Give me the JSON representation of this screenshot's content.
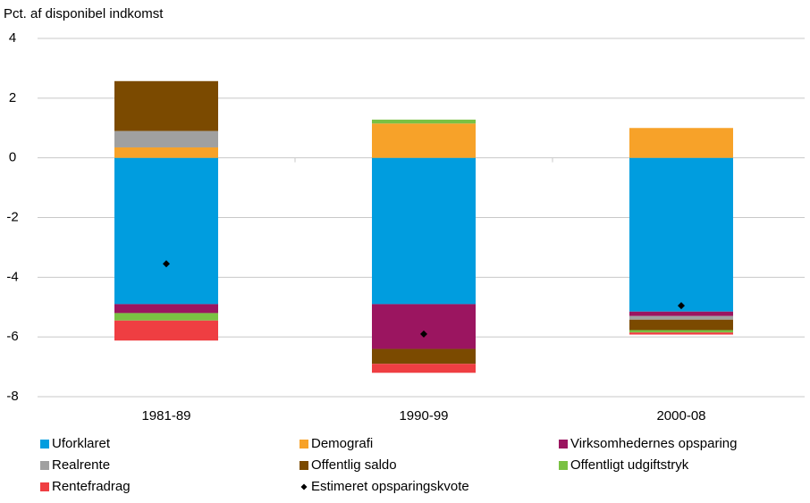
{
  "chart_data": {
    "type": "stacked-bar",
    "y_label": "Pct. af disponibel indkomst",
    "categories": [
      "1981-89",
      "1990-99",
      "2000-08"
    ],
    "series": [
      {
        "name": "Uforklaret",
        "color": "#009ddf",
        "values": [
          -4.9,
          -4.9,
          -5.15
        ]
      },
      {
        "name": "Demografi",
        "color": "#f7a229",
        "values": [
          0.35,
          1.15,
          1.0
        ]
      },
      {
        "name": "Virksomhedernes opsparing",
        "color": "#9b1560",
        "values": [
          -0.3,
          -1.5,
          -0.15
        ]
      },
      {
        "name": "Realrente",
        "color": "#a0a0a0",
        "values": [
          0.55,
          0,
          -0.12
        ]
      },
      {
        "name": "Offentlig saldo",
        "color": "#7b4a00",
        "values": [
          1.67,
          -0.5,
          -0.35
        ]
      },
      {
        "name": "Offentligt udgiftstryk",
        "color": "#7ac143",
        "values": [
          -0.25,
          0.13,
          -0.08
        ]
      },
      {
        "name": "Rentefradrag",
        "color": "#ef3e42",
        "values": [
          -0.67,
          -0.3,
          -0.07
        ]
      }
    ],
    "estimate": {
      "name": "Estimeret opsparingskvote",
      "color": "#000000",
      "values": [
        -3.55,
        -5.9,
        -4.95
      ]
    },
    "ylim": [
      -8,
      4
    ],
    "yticks": [
      -8,
      -6,
      -4,
      -2,
      0,
      2,
      4
    ],
    "grid": true
  }
}
